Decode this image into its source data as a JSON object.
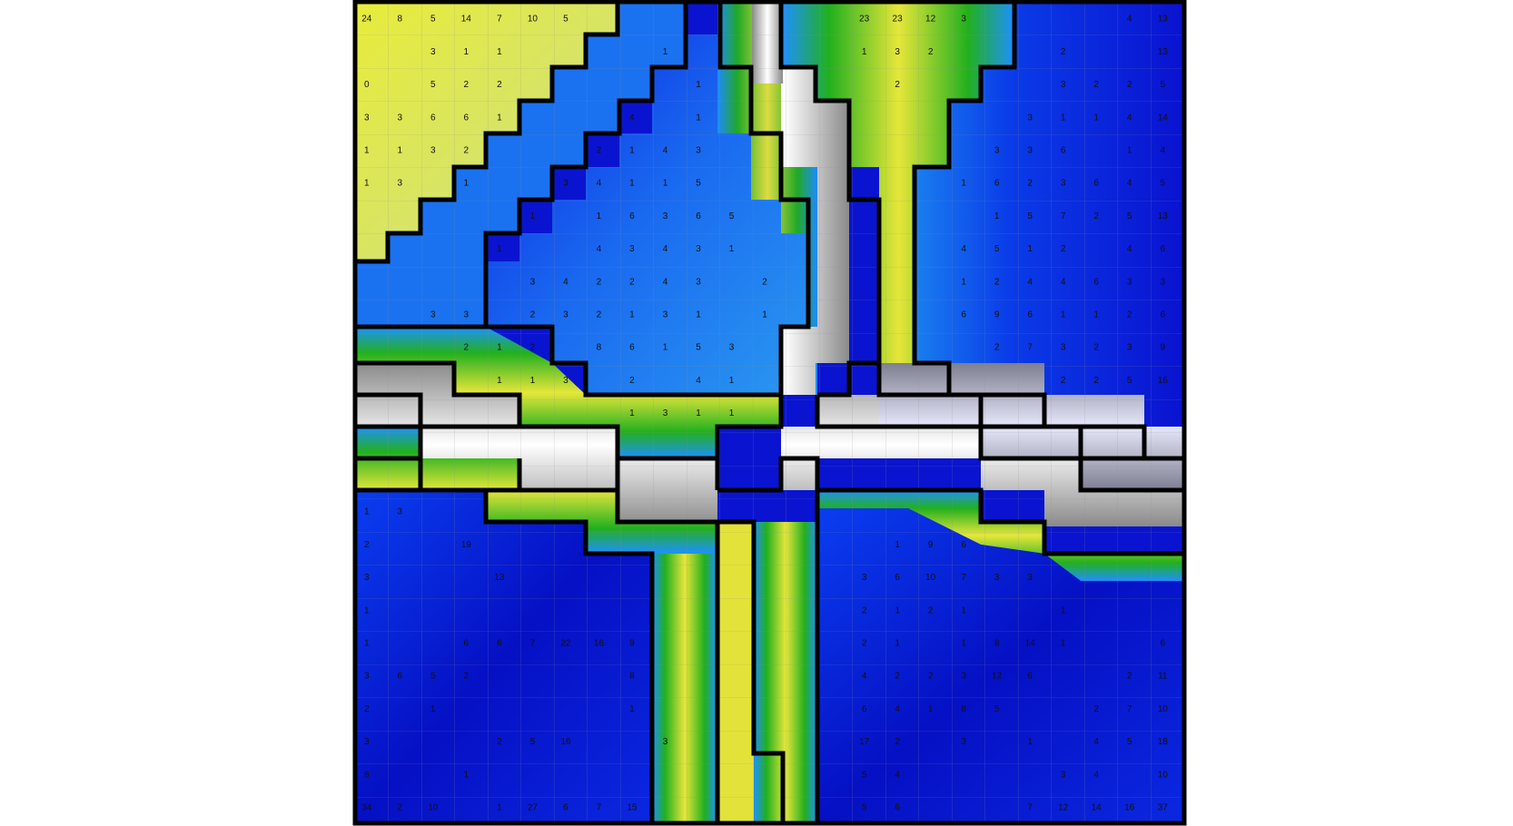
{
  "colors": {
    "yellow": "#e6e63a",
    "blue": "#0a14d8",
    "mid_blue": "#1e90ff",
    "green": "#1fa51f",
    "gray": "#a8a8a8",
    "white": "#ffffff",
    "border": "#000000"
  },
  "grid": {
    "cols": 25,
    "rows": 25
  },
  "numbers": [
    {
      "r": 0,
      "c": 0,
      "v": "24"
    },
    {
      "r": 0,
      "c": 1,
      "v": "8"
    },
    {
      "r": 0,
      "c": 2,
      "v": "5"
    },
    {
      "r": 0,
      "c": 3,
      "v": "14"
    },
    {
      "r": 0,
      "c": 4,
      "v": "7"
    },
    {
      "r": 0,
      "c": 5,
      "v": "10"
    },
    {
      "r": 0,
      "c": 6,
      "v": "5"
    },
    {
      "r": 0,
      "c": 15,
      "v": "23"
    },
    {
      "r": 0,
      "c": 16,
      "v": "23"
    },
    {
      "r": 0,
      "c": 17,
      "v": "12"
    },
    {
      "r": 0,
      "c": 18,
      "v": "3"
    },
    {
      "r": 0,
      "c": 23,
      "v": "4"
    },
    {
      "r": 0,
      "c": 24,
      "v": "13"
    },
    {
      "r": 1,
      "c": 2,
      "v": "3"
    },
    {
      "r": 1,
      "c": 3,
      "v": "1"
    },
    {
      "r": 1,
      "c": 4,
      "v": "1"
    },
    {
      "r": 1,
      "c": 9,
      "v": "1"
    },
    {
      "r": 1,
      "c": 15,
      "v": "1"
    },
    {
      "r": 1,
      "c": 16,
      "v": "3"
    },
    {
      "r": 1,
      "c": 17,
      "v": "2"
    },
    {
      "r": 1,
      "c": 21,
      "v": "2"
    },
    {
      "r": 1,
      "c": 24,
      "v": "13"
    },
    {
      "r": 2,
      "c": 0,
      "v": "0"
    },
    {
      "r": 2,
      "c": 2,
      "v": "5"
    },
    {
      "r": 2,
      "c": 3,
      "v": "2"
    },
    {
      "r": 2,
      "c": 4,
      "v": "2"
    },
    {
      "r": 2,
      "c": 10,
      "v": "1"
    },
    {
      "r": 2,
      "c": 16,
      "v": "2"
    },
    {
      "r": 2,
      "c": 21,
      "v": "3"
    },
    {
      "r": 2,
      "c": 22,
      "v": "2"
    },
    {
      "r": 2,
      "c": 23,
      "v": "2"
    },
    {
      "r": 2,
      "c": 24,
      "v": "5"
    },
    {
      "r": 3,
      "c": 0,
      "v": "3"
    },
    {
      "r": 3,
      "c": 1,
      "v": "3"
    },
    {
      "r": 3,
      "c": 2,
      "v": "6"
    },
    {
      "r": 3,
      "c": 3,
      "v": "6"
    },
    {
      "r": 3,
      "c": 4,
      "v": "1"
    },
    {
      "r": 3,
      "c": 8,
      "v": "4"
    },
    {
      "r": 3,
      "c": 10,
      "v": "1"
    },
    {
      "r": 3,
      "c": 20,
      "v": "3"
    },
    {
      "r": 3,
      "c": 21,
      "v": "1"
    },
    {
      "r": 3,
      "c": 22,
      "v": "1"
    },
    {
      "r": 3,
      "c": 23,
      "v": "4"
    },
    {
      "r": 3,
      "c": 24,
      "v": "14"
    },
    {
      "r": 4,
      "c": 0,
      "v": "1"
    },
    {
      "r": 4,
      "c": 1,
      "v": "1"
    },
    {
      "r": 4,
      "c": 2,
      "v": "3"
    },
    {
      "r": 4,
      "c": 3,
      "v": "2"
    },
    {
      "r": 4,
      "c": 7,
      "v": "2"
    },
    {
      "r": 4,
      "c": 8,
      "v": "1"
    },
    {
      "r": 4,
      "c": 9,
      "v": "4"
    },
    {
      "r": 4,
      "c": 10,
      "v": "3"
    },
    {
      "r": 4,
      "c": 19,
      "v": "3"
    },
    {
      "r": 4,
      "c": 20,
      "v": "3"
    },
    {
      "r": 4,
      "c": 21,
      "v": "6"
    },
    {
      "r": 4,
      "c": 23,
      "v": "1"
    },
    {
      "r": 4,
      "c": 24,
      "v": "4"
    },
    {
      "r": 5,
      "c": 0,
      "v": "1"
    },
    {
      "r": 5,
      "c": 1,
      "v": "3"
    },
    {
      "r": 5,
      "c": 3,
      "v": "1"
    },
    {
      "r": 5,
      "c": 6,
      "v": "3"
    },
    {
      "r": 5,
      "c": 7,
      "v": "4"
    },
    {
      "r": 5,
      "c": 8,
      "v": "1"
    },
    {
      "r": 5,
      "c": 9,
      "v": "1"
    },
    {
      "r": 5,
      "c": 10,
      "v": "5"
    },
    {
      "r": 5,
      "c": 18,
      "v": "1"
    },
    {
      "r": 5,
      "c": 19,
      "v": "6"
    },
    {
      "r": 5,
      "c": 20,
      "v": "2"
    },
    {
      "r": 5,
      "c": 21,
      "v": "3"
    },
    {
      "r": 5,
      "c": 22,
      "v": "6"
    },
    {
      "r": 5,
      "c": 23,
      "v": "4"
    },
    {
      "r": 5,
      "c": 24,
      "v": "5"
    },
    {
      "r": 6,
      "c": 5,
      "v": "1"
    },
    {
      "r": 6,
      "c": 7,
      "v": "1"
    },
    {
      "r": 6,
      "c": 8,
      "v": "6"
    },
    {
      "r": 6,
      "c": 9,
      "v": "3"
    },
    {
      "r": 6,
      "c": 10,
      "v": "6"
    },
    {
      "r": 6,
      "c": 11,
      "v": "5"
    },
    {
      "r": 6,
      "c": 19,
      "v": "1"
    },
    {
      "r": 6,
      "c": 20,
      "v": "5"
    },
    {
      "r": 6,
      "c": 21,
      "v": "7"
    },
    {
      "r": 6,
      "c": 22,
      "v": "2"
    },
    {
      "r": 6,
      "c": 23,
      "v": "5"
    },
    {
      "r": 6,
      "c": 24,
      "v": "13"
    },
    {
      "r": 7,
      "c": 4,
      "v": "1"
    },
    {
      "r": 7,
      "c": 7,
      "v": "4"
    },
    {
      "r": 7,
      "c": 8,
      "v": "3"
    },
    {
      "r": 7,
      "c": 9,
      "v": "4"
    },
    {
      "r": 7,
      "c": 10,
      "v": "3"
    },
    {
      "r": 7,
      "c": 11,
      "v": "1"
    },
    {
      "r": 7,
      "c": 18,
      "v": "4"
    },
    {
      "r": 7,
      "c": 19,
      "v": "5"
    },
    {
      "r": 7,
      "c": 20,
      "v": "1"
    },
    {
      "r": 7,
      "c": 21,
      "v": "2"
    },
    {
      "r": 7,
      "c": 23,
      "v": "4"
    },
    {
      "r": 7,
      "c": 24,
      "v": "6"
    },
    {
      "r": 8,
      "c": 5,
      "v": "3"
    },
    {
      "r": 8,
      "c": 6,
      "v": "4"
    },
    {
      "r": 8,
      "c": 7,
      "v": "2"
    },
    {
      "r": 8,
      "c": 8,
      "v": "2"
    },
    {
      "r": 8,
      "c": 9,
      "v": "4"
    },
    {
      "r": 8,
      "c": 10,
      "v": "3"
    },
    {
      "r": 8,
      "c": 12,
      "v": "2"
    },
    {
      "r": 8,
      "c": 18,
      "v": "1"
    },
    {
      "r": 8,
      "c": 19,
      "v": "2"
    },
    {
      "r": 8,
      "c": 20,
      "v": "4"
    },
    {
      "r": 8,
      "c": 21,
      "v": "4"
    },
    {
      "r": 8,
      "c": 22,
      "v": "6"
    },
    {
      "r": 8,
      "c": 23,
      "v": "3"
    },
    {
      "r": 8,
      "c": 24,
      "v": "3"
    },
    {
      "r": 9,
      "c": 2,
      "v": "3"
    },
    {
      "r": 9,
      "c": 3,
      "v": "3"
    },
    {
      "r": 9,
      "c": 5,
      "v": "2"
    },
    {
      "r": 9,
      "c": 6,
      "v": "3"
    },
    {
      "r": 9,
      "c": 7,
      "v": "2"
    },
    {
      "r": 9,
      "c": 8,
      "v": "1"
    },
    {
      "r": 9,
      "c": 9,
      "v": "3"
    },
    {
      "r": 9,
      "c": 10,
      "v": "1"
    },
    {
      "r": 9,
      "c": 12,
      "v": "1"
    },
    {
      "r": 9,
      "c": 18,
      "v": "6"
    },
    {
      "r": 9,
      "c": 19,
      "v": "9"
    },
    {
      "r": 9,
      "c": 20,
      "v": "6"
    },
    {
      "r": 9,
      "c": 21,
      "v": "1"
    },
    {
      "r": 9,
      "c": 22,
      "v": "1"
    },
    {
      "r": 9,
      "c": 23,
      "v": "2"
    },
    {
      "r": 9,
      "c": 24,
      "v": "6"
    },
    {
      "r": 10,
      "c": 3,
      "v": "2"
    },
    {
      "r": 10,
      "c": 4,
      "v": "1"
    },
    {
      "r": 10,
      "c": 5,
      "v": "2"
    },
    {
      "r": 10,
      "c": 7,
      "v": "8"
    },
    {
      "r": 10,
      "c": 8,
      "v": "6"
    },
    {
      "r": 10,
      "c": 9,
      "v": "1"
    },
    {
      "r": 10,
      "c": 10,
      "v": "5"
    },
    {
      "r": 10,
      "c": 11,
      "v": "3"
    },
    {
      "r": 10,
      "c": 19,
      "v": "2"
    },
    {
      "r": 10,
      "c": 20,
      "v": "7"
    },
    {
      "r": 10,
      "c": 21,
      "v": "3"
    },
    {
      "r": 10,
      "c": 22,
      "v": "2"
    },
    {
      "r": 10,
      "c": 23,
      "v": "3"
    },
    {
      "r": 10,
      "c": 24,
      "v": "9"
    },
    {
      "r": 11,
      "c": 4,
      "v": "1"
    },
    {
      "r": 11,
      "c": 5,
      "v": "1"
    },
    {
      "r": 11,
      "c": 6,
      "v": "3"
    },
    {
      "r": 11,
      "c": 8,
      "v": "2"
    },
    {
      "r": 11,
      "c": 10,
      "v": "4"
    },
    {
      "r": 11,
      "c": 11,
      "v": "1"
    },
    {
      "r": 11,
      "c": 21,
      "v": "2"
    },
    {
      "r": 11,
      "c": 22,
      "v": "2"
    },
    {
      "r": 11,
      "c": 23,
      "v": "5"
    },
    {
      "r": 11,
      "c": 24,
      "v": "16"
    },
    {
      "r": 12,
      "c": 8,
      "v": "1"
    },
    {
      "r": 12,
      "c": 9,
      "v": "3"
    },
    {
      "r": 12,
      "c": 10,
      "v": "1"
    },
    {
      "r": 12,
      "c": 11,
      "v": "1"
    },
    {
      "r": 15,
      "c": 0,
      "v": "1"
    },
    {
      "r": 15,
      "c": 1,
      "v": "3"
    },
    {
      "r": 16,
      "c": 0,
      "v": "2"
    },
    {
      "r": 16,
      "c": 3,
      "v": "19"
    },
    {
      "r": 16,
      "c": 16,
      "v": "1"
    },
    {
      "r": 16,
      "c": 17,
      "v": "9"
    },
    {
      "r": 16,
      "c": 18,
      "v": "6"
    },
    {
      "r": 17,
      "c": 0,
      "v": "3"
    },
    {
      "r": 17,
      "c": 4,
      "v": "13"
    },
    {
      "r": 17,
      "c": 15,
      "v": "3"
    },
    {
      "r": 17,
      "c": 16,
      "v": "6"
    },
    {
      "r": 17,
      "c": 17,
      "v": "10"
    },
    {
      "r": 17,
      "c": 18,
      "v": "7"
    },
    {
      "r": 17,
      "c": 19,
      "v": "3"
    },
    {
      "r": 17,
      "c": 20,
      "v": "3"
    },
    {
      "r": 18,
      "c": 0,
      "v": "1"
    },
    {
      "r": 18,
      "c": 15,
      "v": "2"
    },
    {
      "r": 18,
      "c": 16,
      "v": "1"
    },
    {
      "r": 18,
      "c": 17,
      "v": "2"
    },
    {
      "r": 18,
      "c": 18,
      "v": "1"
    },
    {
      "r": 18,
      "c": 21,
      "v": "1"
    },
    {
      "r": 19,
      "c": 0,
      "v": "1"
    },
    {
      "r": 19,
      "c": 3,
      "v": "6"
    },
    {
      "r": 19,
      "c": 4,
      "v": "6"
    },
    {
      "r": 19,
      "c": 5,
      "v": "7"
    },
    {
      "r": 19,
      "c": 6,
      "v": "22"
    },
    {
      "r": 19,
      "c": 7,
      "v": "16"
    },
    {
      "r": 19,
      "c": 8,
      "v": "9"
    },
    {
      "r": 19,
      "c": 15,
      "v": "2"
    },
    {
      "r": 19,
      "c": 16,
      "v": "1"
    },
    {
      "r": 19,
      "c": 18,
      "v": "1"
    },
    {
      "r": 19,
      "c": 19,
      "v": "8"
    },
    {
      "r": 19,
      "c": 20,
      "v": "14"
    },
    {
      "r": 19,
      "c": 21,
      "v": "1"
    },
    {
      "r": 19,
      "c": 24,
      "v": "6"
    },
    {
      "r": 20,
      "c": 0,
      "v": "3"
    },
    {
      "r": 20,
      "c": 1,
      "v": "6"
    },
    {
      "r": 20,
      "c": 2,
      "v": "5"
    },
    {
      "r": 20,
      "c": 3,
      "v": "2"
    },
    {
      "r": 20,
      "c": 8,
      "v": "8"
    },
    {
      "r": 20,
      "c": 15,
      "v": "4"
    },
    {
      "r": 20,
      "c": 16,
      "v": "2"
    },
    {
      "r": 20,
      "c": 17,
      "v": "2"
    },
    {
      "r": 20,
      "c": 18,
      "v": "3"
    },
    {
      "r": 20,
      "c": 19,
      "v": "12"
    },
    {
      "r": 20,
      "c": 20,
      "v": "6"
    },
    {
      "r": 20,
      "c": 23,
      "v": "2"
    },
    {
      "r": 20,
      "c": 24,
      "v": "11"
    },
    {
      "r": 21,
      "c": 0,
      "v": "2"
    },
    {
      "r": 21,
      "c": 2,
      "v": "1"
    },
    {
      "r": 21,
      "c": 8,
      "v": "1"
    },
    {
      "r": 21,
      "c": 15,
      "v": "6"
    },
    {
      "r": 21,
      "c": 16,
      "v": "4"
    },
    {
      "r": 21,
      "c": 17,
      "v": "1"
    },
    {
      "r": 21,
      "c": 18,
      "v": "8"
    },
    {
      "r": 21,
      "c": 19,
      "v": "5"
    },
    {
      "r": 21,
      "c": 22,
      "v": "2"
    },
    {
      "r": 21,
      "c": 23,
      "v": "7"
    },
    {
      "r": 21,
      "c": 24,
      "v": "10"
    },
    {
      "r": 22,
      "c": 0,
      "v": "3"
    },
    {
      "r": 22,
      "c": 4,
      "v": "2"
    },
    {
      "r": 22,
      "c": 5,
      "v": "5"
    },
    {
      "r": 22,
      "c": 6,
      "v": "16"
    },
    {
      "r": 22,
      "c": 9,
      "v": "3"
    },
    {
      "r": 22,
      "c": 15,
      "v": "17"
    },
    {
      "r": 22,
      "c": 16,
      "v": "2"
    },
    {
      "r": 22,
      "c": 18,
      "v": "3"
    },
    {
      "r": 22,
      "c": 20,
      "v": "1"
    },
    {
      "r": 22,
      "c": 22,
      "v": "4"
    },
    {
      "r": 22,
      "c": 23,
      "v": "5"
    },
    {
      "r": 22,
      "c": 24,
      "v": "18"
    },
    {
      "r": 23,
      "c": 0,
      "v": "8"
    },
    {
      "r": 23,
      "c": 3,
      "v": "1"
    },
    {
      "r": 23,
      "c": 15,
      "v": "5"
    },
    {
      "r": 23,
      "c": 16,
      "v": "4"
    },
    {
      "r": 23,
      "c": 21,
      "v": "3"
    },
    {
      "r": 23,
      "c": 22,
      "v": "4"
    },
    {
      "r": 23,
      "c": 24,
      "v": "10"
    },
    {
      "r": 24,
      "c": 0,
      "v": "34"
    },
    {
      "r": 24,
      "c": 1,
      "v": "2"
    },
    {
      "r": 24,
      "c": 2,
      "v": "10"
    },
    {
      "r": 24,
      "c": 4,
      "v": "1"
    },
    {
      "r": 24,
      "c": 5,
      "v": "27"
    },
    {
      "r": 24,
      "c": 6,
      "v": "6"
    },
    {
      "r": 24,
      "c": 7,
      "v": "7"
    },
    {
      "r": 24,
      "c": 8,
      "v": "15"
    },
    {
      "r": 24,
      "c": 15,
      "v": "5"
    },
    {
      "r": 24,
      "c": 16,
      "v": "6"
    },
    {
      "r": 24,
      "c": 20,
      "v": "7"
    },
    {
      "r": 24,
      "c": 21,
      "v": "12"
    },
    {
      "r": 24,
      "c": 22,
      "v": "14"
    },
    {
      "r": 24,
      "c": 23,
      "v": "16"
    },
    {
      "r": 24,
      "c": 24,
      "v": "37"
    }
  ]
}
